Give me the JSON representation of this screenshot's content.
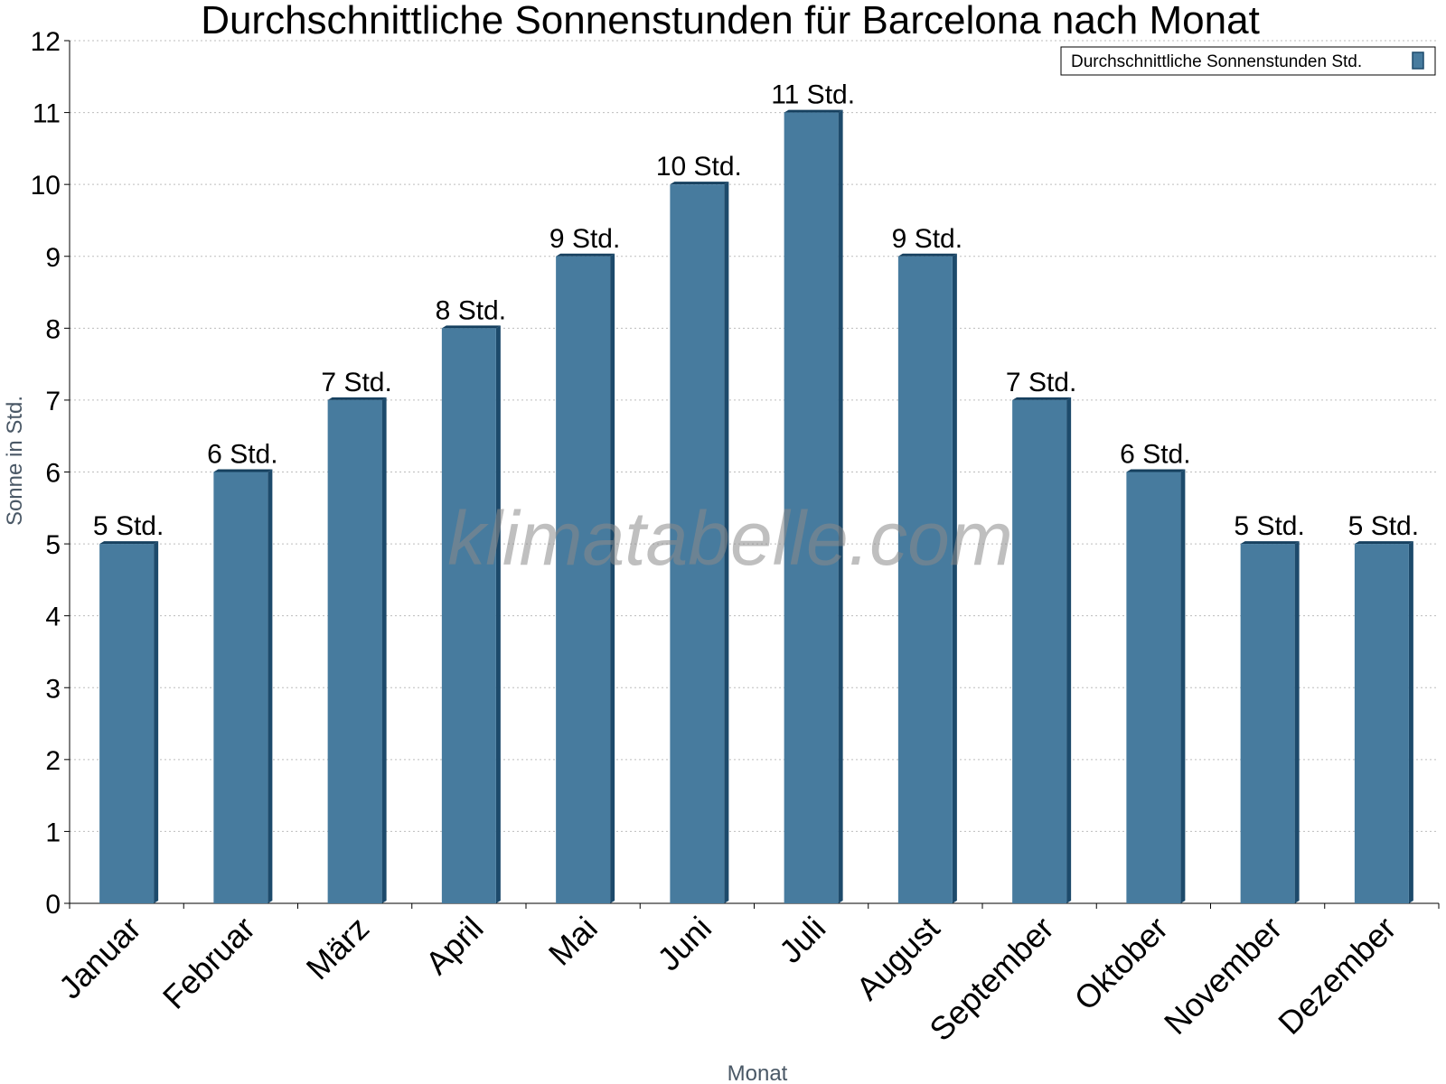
{
  "watermark": "klimatabelle.com",
  "legend": {
    "label": "Durchschnittliche Sonnenstunden Std."
  },
  "colors": {
    "bar_front": "#477b9e",
    "bar_side": "#1d4a6b",
    "bar_top": "#16405f",
    "grid": "#bdbdbd"
  },
  "chart_data": {
    "type": "bar",
    "title": "Durchschnittliche Sonnenstunden für Barcelona nach Monat",
    "xlabel": "Monat",
    "ylabel": "Sonne in Std.",
    "categories": [
      "Januar",
      "Februar",
      "März",
      "April",
      "Mai",
      "Juni",
      "Juli",
      "August",
      "September",
      "Oktober",
      "November",
      "Dezember"
    ],
    "series": [
      {
        "name": "Durchschnittliche Sonnenstunden Std.",
        "values": [
          5,
          6,
          7,
          8,
          9,
          10,
          11,
          9,
          7,
          6,
          5,
          5
        ],
        "data_labels": [
          "5 Std.",
          "6 Std.",
          "7 Std.",
          "8 Std.",
          "9 Std.",
          "10 Std.",
          "11 Std.",
          "9 Std.",
          "7 Std.",
          "6 Std.",
          "5 Std.",
          "5 Std."
        ]
      }
    ],
    "ylim": [
      0,
      12
    ],
    "yticks": [
      0,
      1,
      2,
      3,
      4,
      5,
      6,
      7,
      8,
      9,
      10,
      11,
      12
    ],
    "grid": true,
    "legend_position": "top-right"
  }
}
